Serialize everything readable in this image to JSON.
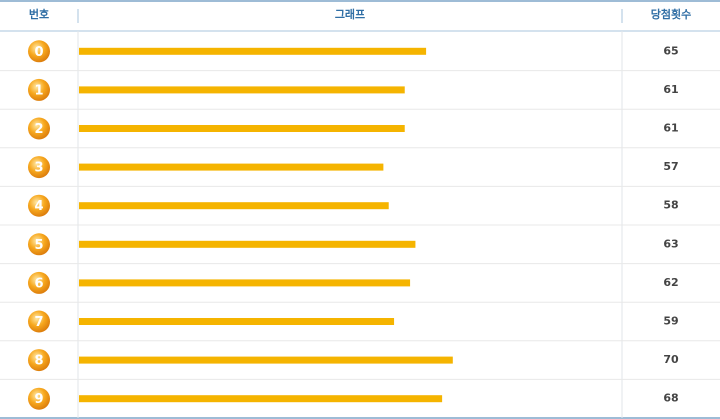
{
  "chart_data": {
    "type": "bar",
    "orientation": "horizontal",
    "headers": [
      "번호",
      "그래프",
      "당첨횟수"
    ],
    "categories": [
      "0",
      "1",
      "2",
      "3",
      "4",
      "5",
      "6",
      "7",
      "8",
      "9"
    ],
    "values": [
      65,
      61,
      61,
      57,
      58,
      63,
      62,
      59,
      70,
      68
    ],
    "color": "#f5b400"
  }
}
